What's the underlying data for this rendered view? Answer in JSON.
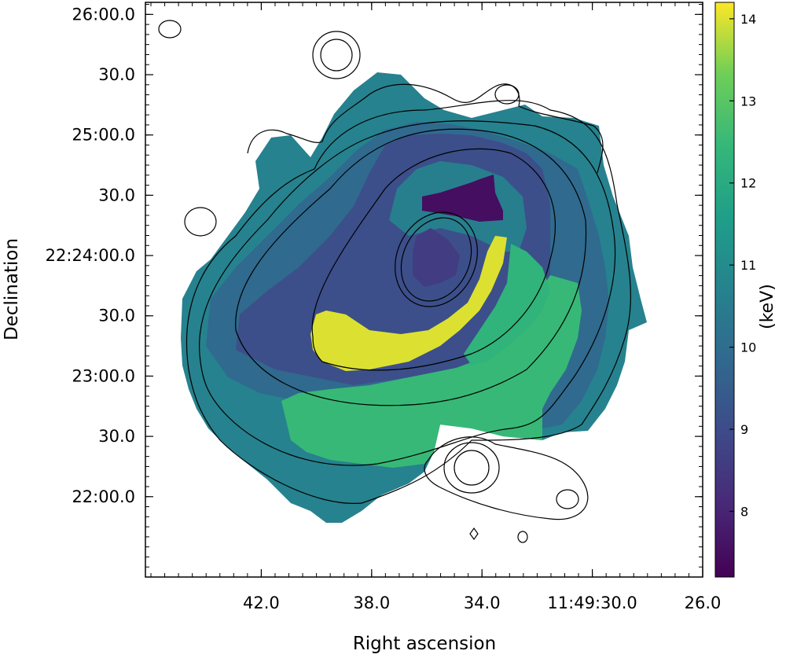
{
  "chart_data": {
    "type": "heatmap",
    "title": "",
    "xlabel": "Right ascension",
    "ylabel": "Declination",
    "x_tick_labels": [
      "42.0",
      "38.0",
      "34.0",
      "11:49:30.0",
      "26.0"
    ],
    "x_tick_values_sec": [
      42.0,
      38.0,
      34.0,
      30.0,
      26.0
    ],
    "y_tick_labels": [
      "26:00.0",
      "30.0",
      "25:00.0",
      "30.0",
      "22:24:00.0",
      "30.0",
      "23:00.0",
      "30.0",
      "22:00.0"
    ],
    "y_tick_values_arcsec": [
      240,
      210,
      180,
      150,
      120,
      90,
      60,
      30,
      0
    ],
    "xlim_sec": [
      46.2,
      26.0
    ],
    "ylim_arcsec": [
      -40,
      246
    ],
    "colorbar": {
      "label": "(keV)",
      "tick_labels": [
        "8",
        "9",
        "10",
        "11",
        "12",
        "13",
        "14"
      ],
      "range": [
        7.2,
        14.2
      ],
      "colormap": "viridis"
    },
    "temperature_regions_keV": [
      {
        "region": "outer envelope",
        "value": 10.7
      },
      {
        "region": "ring",
        "value": 9.9
      },
      {
        "region": "inner shell",
        "value": 9.1
      },
      {
        "region": "northwest core cell",
        "value": 10.6
      },
      {
        "region": "central core",
        "value": 8.6
      },
      {
        "region": "northern cold patch",
        "value": 7.5
      },
      {
        "region": "south-southwest sector",
        "value": 12.5
      },
      {
        "region": "southwest bright arc",
        "value": 14.0
      },
      {
        "region": "western arc",
        "value": 12.3
      }
    ],
    "contours": "surface brightness (black lines)",
    "grid": false,
    "legend": "none"
  }
}
